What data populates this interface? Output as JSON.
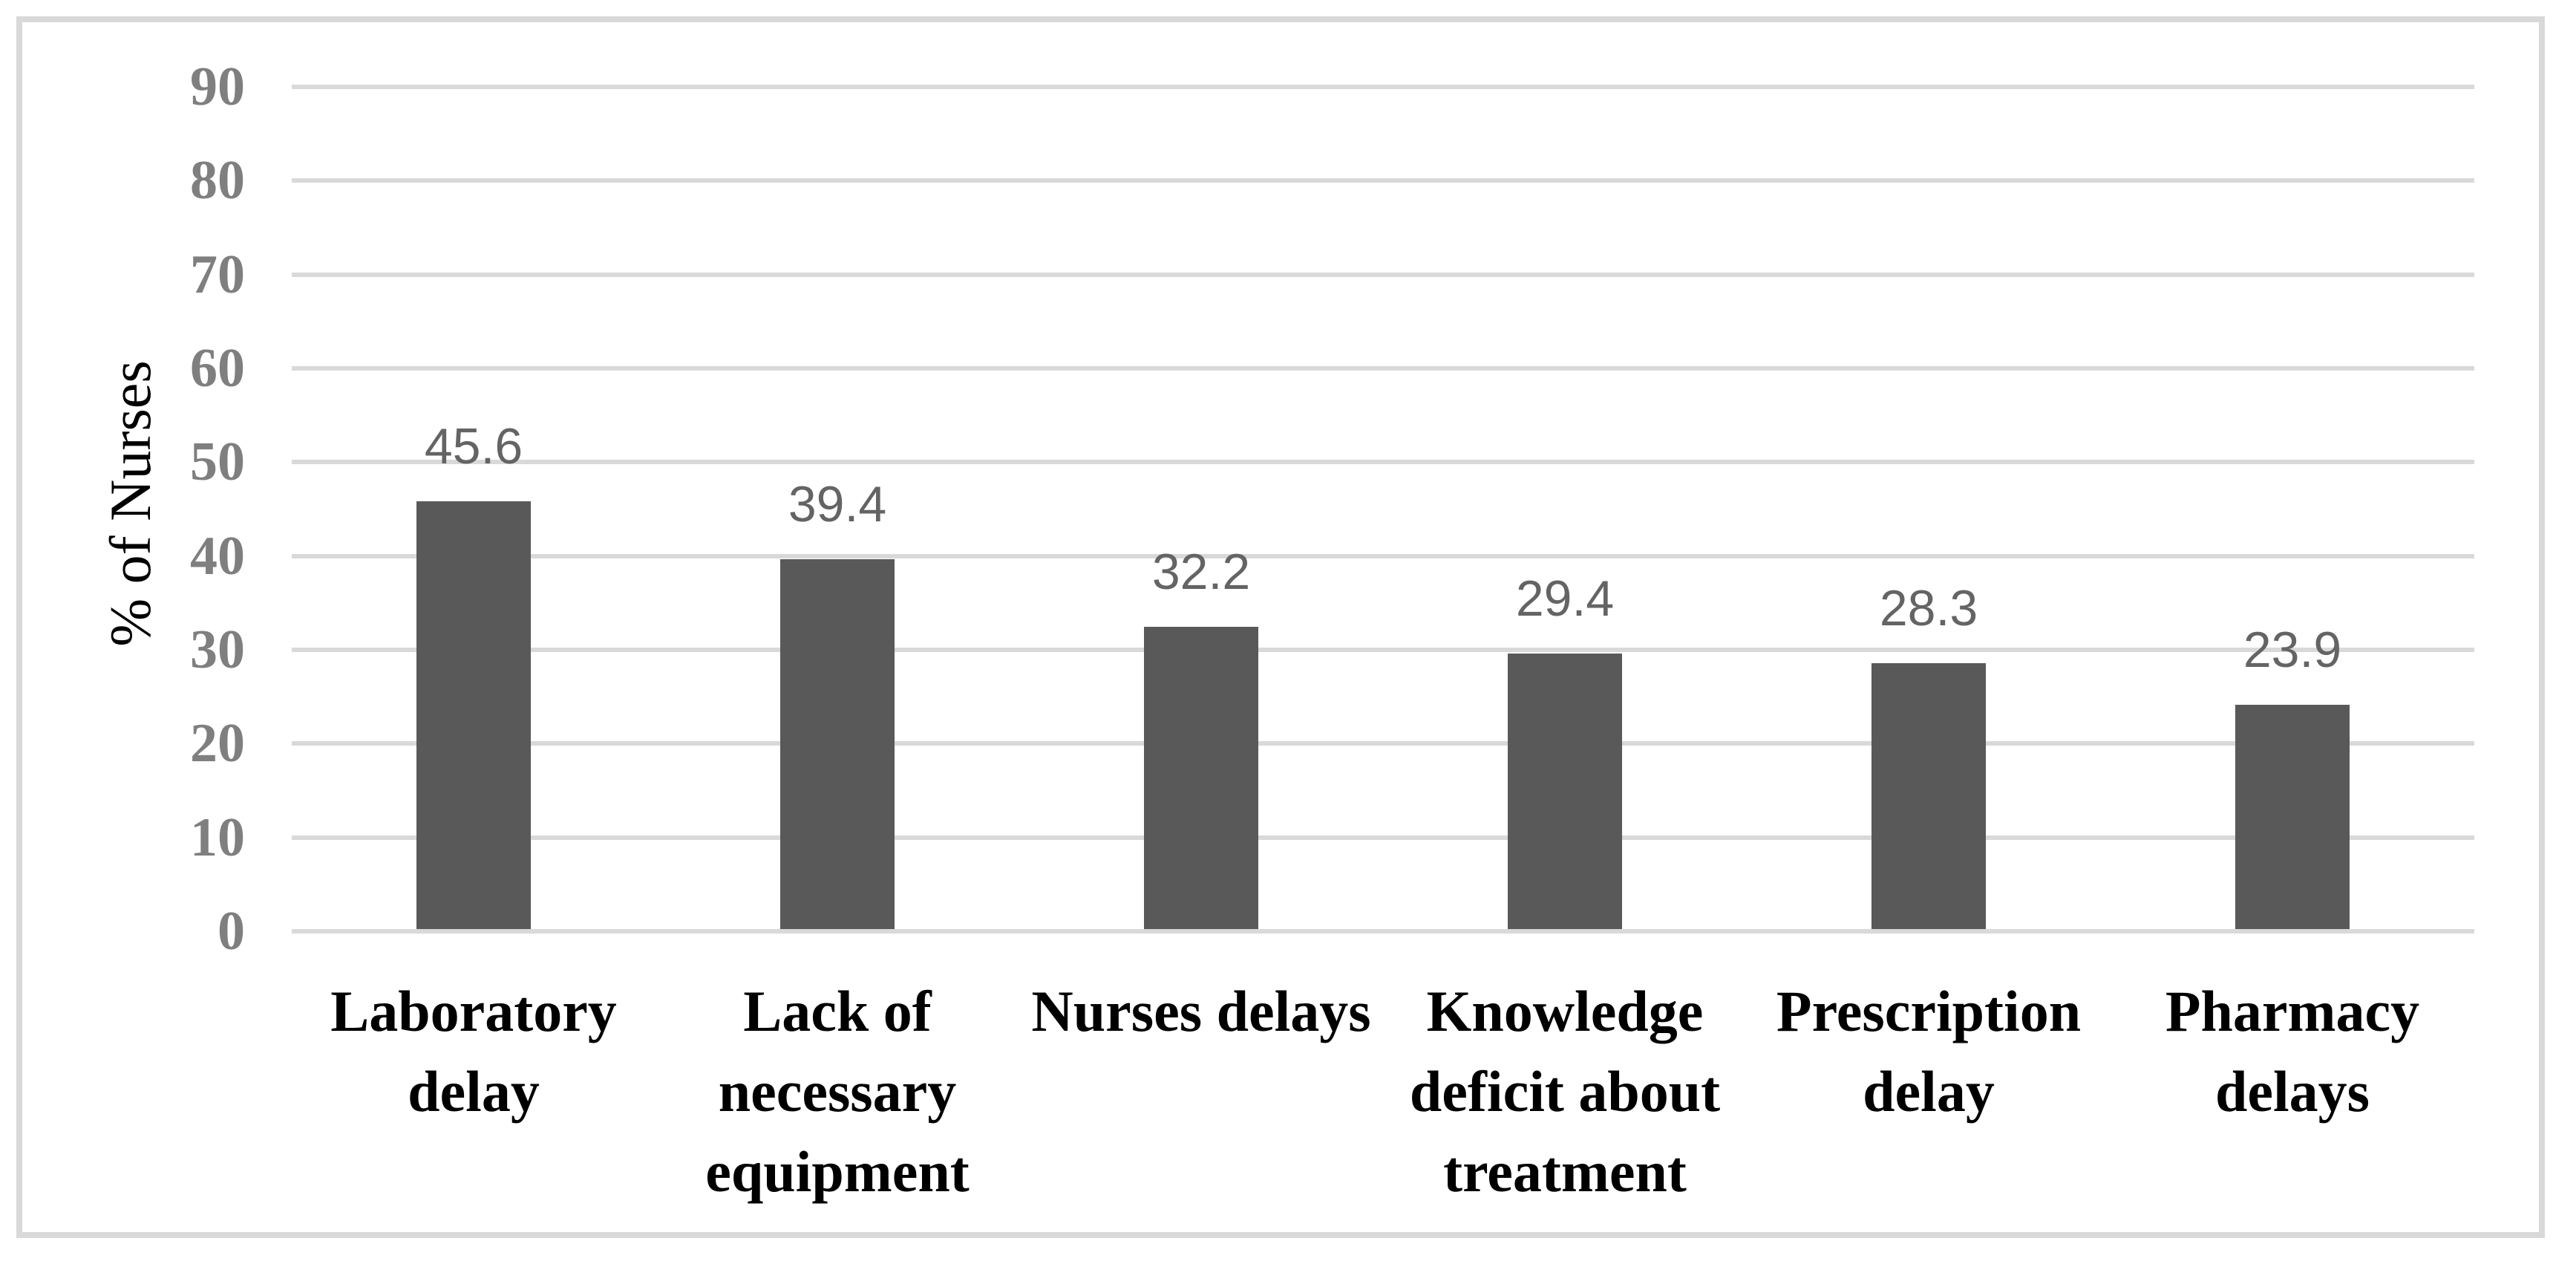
{
  "figure": {
    "background": "#ffffff",
    "frame_border_color": "#d9d9d9"
  },
  "chart_data": {
    "type": "bar",
    "title": "",
    "xlabel": "",
    "ylabel": "% of Nurses",
    "ylim": [
      0,
      90
    ],
    "yticks": [
      0,
      10,
      20,
      30,
      40,
      50,
      60,
      70,
      80,
      90
    ],
    "grid": true,
    "legend": "none",
    "categories": [
      "Laboratory delay",
      "Lack of necessary equipment",
      "Nurses delays",
      "Knowledge deficit about treatment",
      "Prescription delay",
      "Pharmacy delays"
    ],
    "category_lines": [
      [
        "Laboratory",
        "delay"
      ],
      [
        "Lack of",
        "necessary",
        "equipment"
      ],
      [
        "Nurses delays"
      ],
      [
        "Knowledge",
        "deficit about",
        "treatment"
      ],
      [
        "Prescription",
        "delay"
      ],
      [
        "Pharmacy",
        "delays"
      ]
    ],
    "values": [
      45.6,
      39.4,
      32.2,
      29.4,
      28.3,
      23.9
    ],
    "value_labels": [
      "45.6",
      "39.4",
      "32.2",
      "29.4",
      "28.3",
      "23.9"
    ],
    "colors": {
      "bar": "#595959",
      "gridline": "#d9d9d9",
      "tick_label": "#7f7f7f",
      "value_label": "#646464",
      "category_label": "#000000",
      "axis_title": "#000000"
    }
  }
}
